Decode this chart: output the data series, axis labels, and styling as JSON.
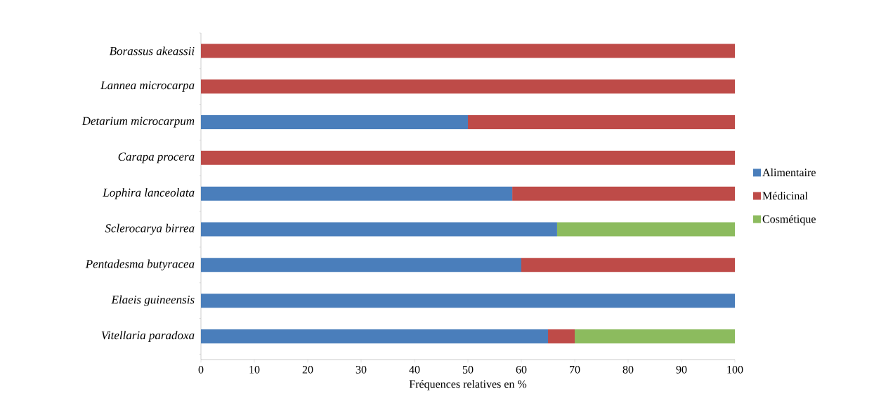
{
  "chart_data": {
    "type": "bar",
    "orientation": "horizontal",
    "stacked": true,
    "categories": [
      "Borassus akeassii",
      "Lannea microcarpa",
      "Detarium microcarpum",
      "Carapa procera",
      "Lophira lanceolata",
      "Sclerocarya birrea",
      "Pentadesma butyracea",
      "Elaeis guineensis",
      "Vitellaria paradoxa"
    ],
    "series": [
      {
        "name": "Alimentaire",
        "color": "#4a7ebb",
        "values": [
          0,
          0,
          50,
          0,
          58.3,
          66.7,
          60,
          100,
          65
        ]
      },
      {
        "name": "Médicinal",
        "color": "#be4b48",
        "values": [
          100,
          100,
          50,
          100,
          41.7,
          0,
          40,
          0,
          5
        ]
      },
      {
        "name": "Cosmétique",
        "color": "#8cbb5e",
        "values": [
          0,
          0,
          0,
          0,
          0,
          33.3,
          0,
          0,
          30
        ]
      }
    ],
    "xlabel": "Fréquences relatives en %",
    "xlim": [
      0,
      100
    ],
    "xticks": [
      0,
      10,
      20,
      30,
      40,
      50,
      60,
      70,
      80,
      90,
      100
    ],
    "legend": "right"
  }
}
